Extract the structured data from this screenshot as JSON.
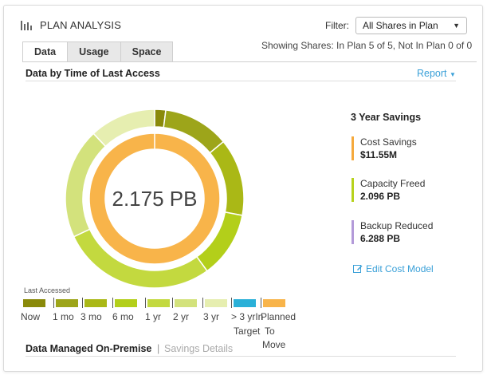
{
  "header": {
    "title": "PLAN ANALYSIS",
    "icon": "bar-chart-icon"
  },
  "filter": {
    "label": "Filter:",
    "selected": "All Shares in Plan"
  },
  "showing_text": "Showing Shares: In Plan 5 of 5, Not In Plan 0 of 0",
  "tabs": [
    {
      "label": "Data",
      "active": true
    },
    {
      "label": "Usage",
      "active": false
    },
    {
      "label": "Space",
      "active": false
    }
  ],
  "section_title": "Data by Time of Last Access",
  "report_label": "Report",
  "donut_center": "2.175 PB",
  "colors": {
    "now": "#8a8a0a",
    "1mo": "#9da51a",
    "3mo": "#aab816",
    "6mo": "#b3cf1a",
    "1yr": "#c3d93f",
    "2yr": "#d3e27c",
    "3yr": "#e6eeb0",
    "gt3yr": "#e6eeb0",
    "target": "#2ab0d8",
    "planned": "#f8b44a",
    "accent_blue": "#3aa0d8",
    "cost_bar": "#f5a93c",
    "capacity_bar": "#b7d21c",
    "backup_bar": "#b39ad9"
  },
  "savings": {
    "title": "3 Year Savings",
    "items": [
      {
        "label": "Cost Savings",
        "value": "$11.55M"
      },
      {
        "label": "Capacity Freed",
        "value": "2.096 PB"
      },
      {
        "label": "Backup Reduced",
        "value": "6.288 PB"
      }
    ],
    "edit_label": "Edit Cost Model"
  },
  "legend": {
    "title": "Last Accessed",
    "items": [
      {
        "label": "Now",
        "color": "#8a8a0a"
      },
      {
        "label": "1 mo",
        "color": "#9da51a"
      },
      {
        "label": "3 mo",
        "color": "#aab816"
      },
      {
        "label": "6 mo",
        "color": "#b3cf1a"
      },
      {
        "label": "1 yr",
        "color": "#c3d93f"
      },
      {
        "label": "2 yr",
        "color": "#d3e27c"
      },
      {
        "label": "3 yr",
        "color": "#e6eeb0"
      },
      {
        "label": "> 3 yrIn",
        "color": "#2ab0d8"
      },
      {
        "label": "Planned",
        "color": "#f8b44a"
      }
    ],
    "extra_labels": [
      "Target",
      "To",
      "Move"
    ]
  },
  "bottom": {
    "title": "Data Managed On-Premise",
    "sep": "|",
    "link": "Savings Details"
  },
  "chart_data": {
    "type": "pie",
    "rings": [
      {
        "name": "outer",
        "slices": [
          {
            "label": "Now",
            "value": 2
          },
          {
            "label": "1 mo",
            "value": 12
          },
          {
            "label": "3 mo",
            "value": 14
          },
          {
            "label": "6 mo",
            "value": 12
          },
          {
            "label": "1 yr",
            "value": 28
          },
          {
            "label": "2 yr",
            "value": 20
          },
          {
            "label": "3 yr",
            "value": 12
          }
        ]
      },
      {
        "name": "inner",
        "slices": [
          {
            "label": "Planned",
            "value": 100
          }
        ]
      }
    ],
    "center_text": "2.175 PB"
  }
}
